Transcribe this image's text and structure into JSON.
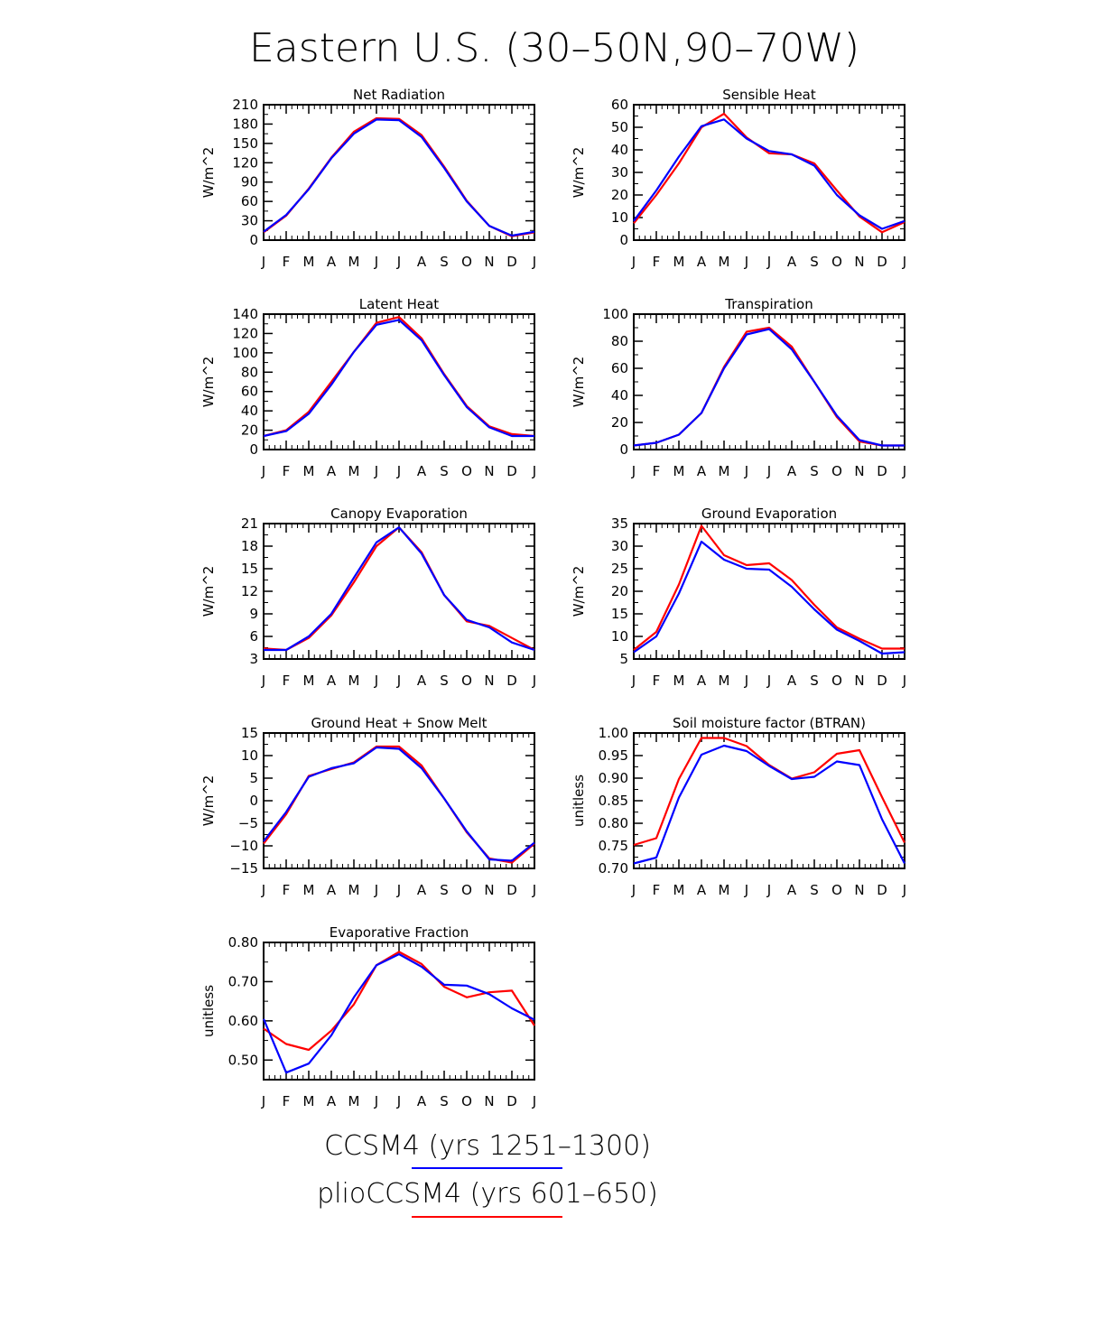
{
  "figure_title": "Eastern U.S. (30–50N,90–70W)",
  "legend": [
    {
      "label": "CCSM4 (yrs 1251–1300)",
      "color": "#0000ff"
    },
    {
      "label": "plioCCSM4 (yrs 601–650)",
      "color": "#ff0000"
    }
  ],
  "colors": {
    "ccsm4": "#0000ff",
    "plio": "#ff0000"
  },
  "chart_data": [
    {
      "type": "line",
      "title": "Net Radiation",
      "ylabel": "W/m^2",
      "categories": [
        "J",
        "F",
        "M",
        "A",
        "M",
        "J",
        "J",
        "A",
        "S",
        "O",
        "N",
        "D",
        "J"
      ],
      "ylim": [
        0,
        210
      ],
      "yticks": [
        0,
        30,
        60,
        90,
        120,
        150,
        180,
        210
      ],
      "ytick_labels": [
        "0",
        "30",
        "60",
        "90",
        "120",
        "150",
        "180",
        "210"
      ],
      "series": [
        {
          "name": "CCSM4 (yrs 1251–1300)",
          "color": "#0000ff",
          "values": [
            13,
            39,
            79,
            127,
            165,
            187,
            186,
            160,
            112,
            60,
            22,
            7,
            13
          ]
        },
        {
          "name": "plioCCSM4 (yrs 601–650)",
          "color": "#ff0000",
          "values": [
            12,
            38,
            80,
            128,
            168,
            189,
            188,
            163,
            114,
            61,
            22,
            6,
            12
          ]
        }
      ]
    },
    {
      "type": "line",
      "title": "Sensible Heat",
      "ylabel": "W/m^2",
      "categories": [
        "J",
        "F",
        "M",
        "A",
        "M",
        "J",
        "J",
        "A",
        "S",
        "O",
        "N",
        "D",
        "J"
      ],
      "ylim": [
        0,
        60
      ],
      "yticks": [
        0,
        10,
        20,
        30,
        40,
        50,
        60
      ],
      "ytick_labels": [
        "0",
        "10",
        "20",
        "30",
        "40",
        "50",
        "60"
      ],
      "series": [
        {
          "name": "CCSM4 (yrs 1251–1300)",
          "color": "#0000ff",
          "values": [
            8.5,
            22,
            37,
            50.5,
            53.5,
            45,
            39.5,
            38,
            33,
            20,
            11,
            5,
            8.5
          ]
        },
        {
          "name": "plioCCSM4 (yrs 601–650)",
          "color": "#ff0000",
          "values": [
            7.5,
            20,
            34,
            50,
            56,
            45.5,
            38.5,
            38,
            34,
            22,
            10.5,
            3.5,
            8
          ]
        }
      ]
    },
    {
      "type": "line",
      "title": "Latent Heat",
      "ylabel": "W/m^2",
      "categories": [
        "J",
        "F",
        "M",
        "A",
        "M",
        "J",
        "J",
        "A",
        "S",
        "O",
        "N",
        "D",
        "J"
      ],
      "ylim": [
        0,
        140
      ],
      "yticks": [
        0,
        20,
        40,
        60,
        80,
        100,
        120,
        140
      ],
      "ytick_labels": [
        "0",
        "20",
        "40",
        "60",
        "80",
        "100",
        "120",
        "140"
      ],
      "series": [
        {
          "name": "CCSM4 (yrs 1251–1300)",
          "color": "#0000ff",
          "values": [
            14,
            19,
            37,
            67,
            101,
            129,
            134,
            113,
            77,
            44,
            23,
            14,
            14
          ]
        },
        {
          "name": "plioCCSM4 (yrs 601–650)",
          "color": "#ff0000",
          "values": [
            14,
            20,
            39,
            70,
            101,
            131,
            137,
            115,
            78,
            45,
            24,
            16,
            14
          ]
        }
      ]
    },
    {
      "type": "line",
      "title": "Transpiration",
      "ylabel": "W/m^2",
      "categories": [
        "J",
        "F",
        "M",
        "A",
        "M",
        "J",
        "J",
        "A",
        "S",
        "O",
        "N",
        "D",
        "J"
      ],
      "ylim": [
        0,
        100
      ],
      "yticks": [
        0,
        20,
        40,
        60,
        80,
        100
      ],
      "ytick_labels": [
        "0",
        "20",
        "40",
        "60",
        "80",
        "100"
      ],
      "series": [
        {
          "name": "CCSM4 (yrs 1251–1300)",
          "color": "#0000ff",
          "values": [
            3,
            5,
            11,
            27,
            60,
            85,
            89,
            74,
            50,
            25,
            7,
            3,
            3
          ]
        },
        {
          "name": "plioCCSM4 (yrs 601–650)",
          "color": "#ff0000",
          "values": [
            3,
            5,
            11,
            27,
            61,
            87,
            90,
            76,
            50,
            24,
            6,
            3,
            3
          ]
        }
      ]
    },
    {
      "type": "line",
      "title": "Canopy Evaporation",
      "ylabel": "W/m^2",
      "categories": [
        "J",
        "F",
        "M",
        "A",
        "M",
        "J",
        "J",
        "A",
        "S",
        "O",
        "N",
        "D",
        "J"
      ],
      "ylim": [
        3,
        21
      ],
      "yticks": [
        3,
        6,
        9,
        12,
        15,
        18,
        21
      ],
      "ytick_labels": [
        "3",
        "6",
        "9",
        "12",
        "15",
        "18",
        "21"
      ],
      "series": [
        {
          "name": "CCSM4 (yrs 1251–1300)",
          "color": "#0000ff",
          "values": [
            4.2,
            4.2,
            6,
            9,
            13.8,
            18.5,
            20.5,
            17,
            11.5,
            8.2,
            7.2,
            5.2,
            4.2
          ]
        },
        {
          "name": "plioCCSM4 (yrs 601–650)",
          "color": "#ff0000",
          "values": [
            4.4,
            4.2,
            5.8,
            8.8,
            13.2,
            18,
            20.5,
            17.2,
            11.5,
            8,
            7.4,
            5.8,
            4.2
          ]
        }
      ]
    },
    {
      "type": "line",
      "title": "Ground Evaporation",
      "ylabel": "W/m^2",
      "categories": [
        "J",
        "F",
        "M",
        "A",
        "M",
        "J",
        "J",
        "A",
        "S",
        "O",
        "N",
        "D",
        "J"
      ],
      "ylim": [
        5,
        35
      ],
      "yticks": [
        5,
        10,
        15,
        20,
        25,
        30,
        35
      ],
      "ytick_labels": [
        "5",
        "10",
        "15",
        "20",
        "25",
        "30",
        "35"
      ],
      "series": [
        {
          "name": "CCSM4 (yrs 1251–1300)",
          "color": "#0000ff",
          "values": [
            6.5,
            10,
            19.5,
            31,
            27,
            25,
            24.8,
            21,
            16,
            11.5,
            9,
            6.2,
            6.5
          ]
        },
        {
          "name": "plioCCSM4 (yrs 601–650)",
          "color": "#ff0000",
          "values": [
            7,
            11,
            21.5,
            34.5,
            28,
            25.8,
            26.2,
            22.5,
            17,
            12,
            9.5,
            7.3,
            7.3
          ]
        }
      ]
    },
    {
      "type": "line",
      "title": "Ground Heat + Snow Melt",
      "ylabel": "W/m^2",
      "categories": [
        "J",
        "F",
        "M",
        "A",
        "M",
        "J",
        "J",
        "A",
        "S",
        "O",
        "N",
        "D",
        "J"
      ],
      "ylim": [
        -15,
        15
      ],
      "yticks": [
        -15,
        -10,
        -5,
        0,
        5,
        10,
        15
      ],
      "ytick_labels": [
        "−15",
        "−10",
        "−5",
        "0",
        "5",
        "10",
        "15"
      ],
      "series": [
        {
          "name": "CCSM4 (yrs 1251–1300)",
          "color": "#0000ff",
          "values": [
            -9,
            -2.5,
            5.3,
            7.2,
            8.3,
            11.8,
            11.5,
            7.2,
            0.5,
            -6.8,
            -13,
            -13.3,
            -9.3
          ]
        },
        {
          "name": "plioCCSM4 (yrs 601–650)",
          "color": "#ff0000",
          "values": [
            -9.5,
            -3,
            5.5,
            7,
            8.5,
            12,
            12,
            7.8,
            0.5,
            -7,
            -12.8,
            -13.7,
            -9.5
          ]
        }
      ]
    },
    {
      "type": "line",
      "title": "Soil moisture factor (BTRAN)",
      "ylabel": "unitless",
      "categories": [
        "J",
        "F",
        "M",
        "A",
        "M",
        "J",
        "J",
        "A",
        "S",
        "O",
        "N",
        "D",
        "J"
      ],
      "ylim": [
        0.7,
        1.0
      ],
      "yticks": [
        0.7,
        0.75,
        0.8,
        0.85,
        0.9,
        0.95,
        1.0
      ],
      "ytick_labels": [
        "0.70",
        "0.75",
        "0.80",
        "0.85",
        "0.90",
        "0.95",
        "1.00"
      ],
      "series": [
        {
          "name": "CCSM4 (yrs 1251–1300)",
          "color": "#0000ff",
          "values": [
            0.711,
            0.724,
            0.857,
            0.952,
            0.972,
            0.96,
            0.927,
            0.898,
            0.903,
            0.937,
            0.929,
            0.809,
            0.711
          ]
        },
        {
          "name": "plioCCSM4 (yrs 601–650)",
          "color": "#ff0000",
          "values": [
            0.752,
            0.767,
            0.898,
            0.989,
            0.989,
            0.971,
            0.929,
            0.899,
            0.913,
            0.954,
            0.962,
            0.858,
            0.757
          ]
        }
      ]
    },
    {
      "type": "line",
      "title": "Evaporative Fraction",
      "ylabel": "unitless",
      "categories": [
        "J",
        "F",
        "M",
        "A",
        "M",
        "J",
        "J",
        "A",
        "S",
        "O",
        "N",
        "D",
        "J"
      ],
      "ylim": [
        0.45,
        0.8
      ],
      "yticks": [
        0.5,
        0.6,
        0.7,
        0.8
      ],
      "ytick_labels": [
        "0.50",
        "0.60",
        "0.70",
        "0.80"
      ],
      "series": [
        {
          "name": "CCSM4 (yrs 1251–1300)",
          "color": "#0000ff",
          "values": [
            0.605,
            0.468,
            0.491,
            0.563,
            0.66,
            0.742,
            0.77,
            0.738,
            0.692,
            0.69,
            0.668,
            0.632,
            0.603
          ]
        },
        {
          "name": "plioCCSM4 (yrs 601–650)",
          "color": "#ff0000",
          "values": [
            0.58,
            0.541,
            0.526,
            0.575,
            0.642,
            0.742,
            0.776,
            0.745,
            0.687,
            0.66,
            0.673,
            0.677,
            0.588
          ]
        }
      ]
    }
  ]
}
